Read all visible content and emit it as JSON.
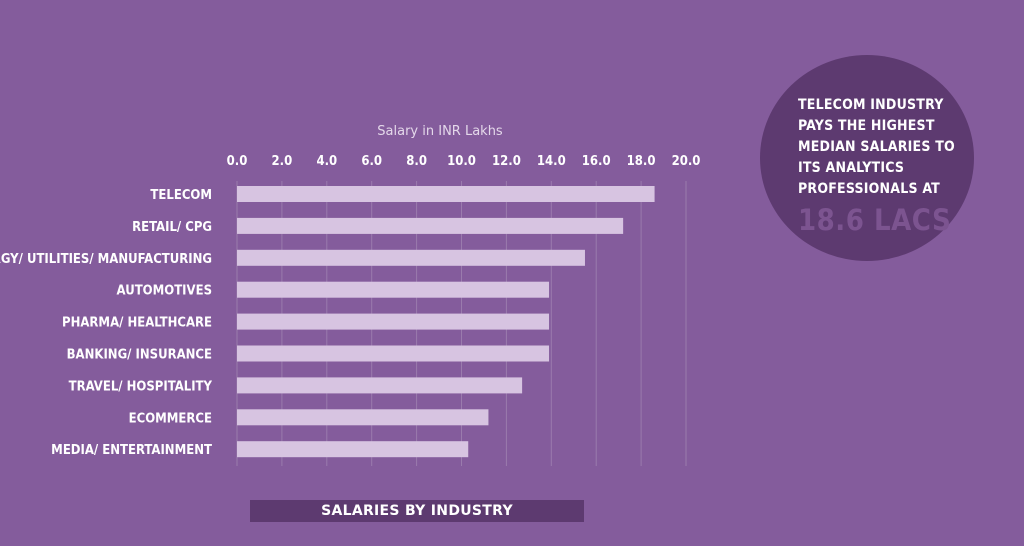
{
  "chart_data": {
    "type": "bar",
    "orientation": "horizontal",
    "xlabel": "Salary in INR Lakhs",
    "xlim": [
      0,
      20
    ],
    "ticks": [
      "0.0",
      "2.0",
      "4.0",
      "6.0",
      "8.0",
      "10.0",
      "12.0",
      "14.0",
      "16.0",
      "18.0",
      "20.0"
    ],
    "grid": true,
    "categories": [
      "TELECOM",
      "RETAIL/ CPG",
      "ENERGY/ UTILITIES/ MANUFACTURING",
      "AUTOMOTIVES",
      "PHARMA/ HEALTHCARE",
      "BANKING/ INSURANCE",
      "TRAVEL/ HOSPITALITY",
      "ECOMMERCE",
      "MEDIA/ ENTERTAINMENT"
    ],
    "values": [
      18.6,
      17.2,
      15.5,
      13.9,
      13.9,
      13.9,
      12.7,
      11.2,
      10.3
    ],
    "colors": {
      "background": "#845c9c",
      "bar": "#d7c4e1",
      "grid": "#9a7bad",
      "accent": "#5d3a70"
    }
  },
  "callout": {
    "text": "TELECOM INDUSTRY PAYS THE HIGHEST MEDIAN SALARIES TO ITS ANALYTICS PROFESSIONALS AT",
    "value": "18.6 LACS"
  },
  "caption": "SALARIES BY INDUSTRY"
}
